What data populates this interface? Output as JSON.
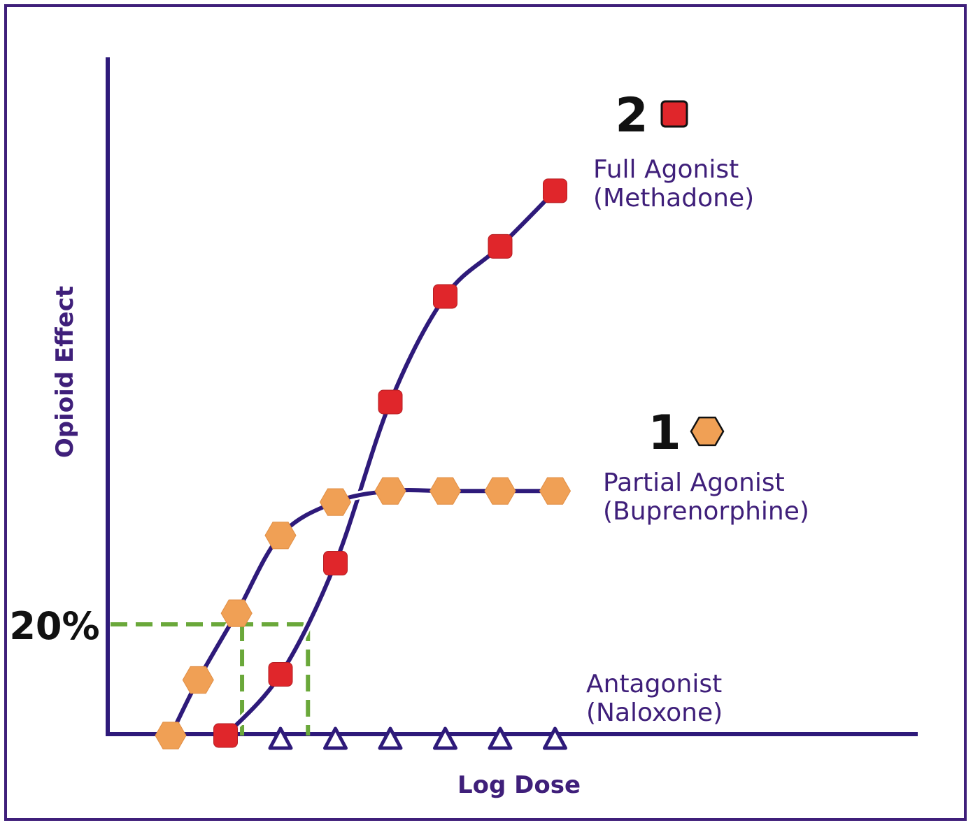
{
  "chart_data": {
    "type": "line",
    "xlabel": "Log Dose",
    "ylabel": "Opioid Effect",
    "ylim": [
      0,
      100
    ],
    "grid": false,
    "colors": {
      "frame": "#3f1f7a",
      "line": "#2e1a7a",
      "full_marker": "#e0262b",
      "partial_marker": "#f0a055",
      "guide": "#6aa83a",
      "series_text": "#3f1f7a"
    },
    "series": [
      {
        "name": "Full Agonist\n(Methadone)",
        "number": "2",
        "marker": "square",
        "x": [
          2,
          3,
          4,
          5,
          6,
          7,
          8
        ],
        "values": [
          0,
          11,
          31,
          60,
          79,
          88,
          98
        ]
      },
      {
        "name": "Partial Agonist\n(Buprenorphine)",
        "number": "1",
        "marker": "hexagon",
        "x": [
          1,
          1.5,
          2.2,
          3,
          4,
          5,
          6,
          7,
          8
        ],
        "values": [
          0,
          10,
          22,
          36,
          42,
          44,
          44,
          44,
          44
        ]
      },
      {
        "name": "Antagonist\n(Naloxone)",
        "number": "",
        "marker": "triangle",
        "x": [
          3,
          4,
          5,
          6,
          7,
          8
        ],
        "values": [
          0,
          0,
          0,
          0,
          0,
          0
        ]
      }
    ],
    "annotations": [
      {
        "text": "20%",
        "y": 20,
        "x_end": [
          2.3,
          3.5
        ]
      }
    ]
  }
}
